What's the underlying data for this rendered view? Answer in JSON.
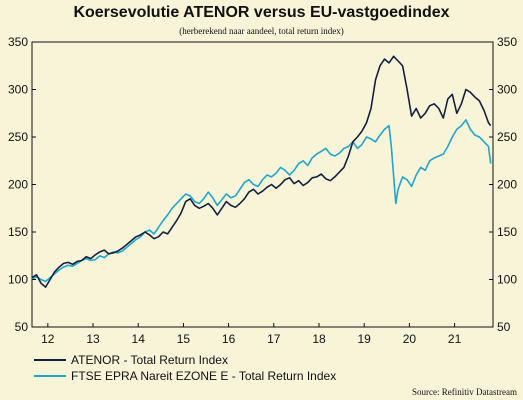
{
  "chart_data": {
    "type": "line",
    "title": "Koersevolutie ATENOR versus EU-vastgoedindex",
    "subtitle": "(herberekend naar aandeel, total return index)",
    "xlabel": "",
    "ylabel": "",
    "xlim": [
      2011.65,
      2021.85
    ],
    "ylim": [
      50,
      350
    ],
    "y_ticks": [
      50,
      100,
      150,
      200,
      250,
      300,
      350
    ],
    "x_ticks": [
      {
        "label": "12",
        "pos": 2012.0
      },
      {
        "label": "13",
        "pos": 2013.0
      },
      {
        "label": "14",
        "pos": 2014.0
      },
      {
        "label": "15",
        "pos": 2015.0
      },
      {
        "label": "16",
        "pos": 2016.0
      },
      {
        "label": "17",
        "pos": 2017.0
      },
      {
        "label": "18",
        "pos": 2018.0
      },
      {
        "label": "19",
        "pos": 2019.0
      },
      {
        "label": "20",
        "pos": 2020.0
      },
      {
        "label": "21",
        "pos": 2021.0
      }
    ],
    "grid": false,
    "legend_position": "bottom-left",
    "source": "Source: Refinitiv Datastream",
    "series": [
      {
        "name": "ATENOR - Total Return Index",
        "color": "#13213f",
        "x": [
          2011.65,
          2011.75,
          2011.85,
          2011.95,
          2012.05,
          2012.15,
          2012.25,
          2012.35,
          2012.45,
          2012.55,
          2012.65,
          2012.75,
          2012.85,
          2012.95,
          2013.05,
          2013.15,
          2013.25,
          2013.35,
          2013.45,
          2013.55,
          2013.65,
          2013.75,
          2013.85,
          2013.95,
          2014.05,
          2014.15,
          2014.25,
          2014.35,
          2014.45,
          2014.55,
          2014.65,
          2014.75,
          2014.85,
          2014.95,
          2015.05,
          2015.15,
          2015.25,
          2015.35,
          2015.45,
          2015.55,
          2015.65,
          2015.75,
          2015.85,
          2015.95,
          2016.05,
          2016.15,
          2016.25,
          2016.35,
          2016.45,
          2016.55,
          2016.65,
          2016.75,
          2016.85,
          2016.95,
          2017.05,
          2017.15,
          2017.25,
          2017.35,
          2017.45,
          2017.55,
          2017.65,
          2017.75,
          2017.85,
          2017.95,
          2018.05,
          2018.15,
          2018.25,
          2018.35,
          2018.45,
          2018.55,
          2018.65,
          2018.75,
          2018.85,
          2018.95,
          2019.05,
          2019.15,
          2019.25,
          2019.35,
          2019.45,
          2019.55,
          2019.65,
          2019.75,
          2019.85,
          2019.95,
          2020.05,
          2020.15,
          2020.25,
          2020.35,
          2020.45,
          2020.55,
          2020.65,
          2020.75,
          2020.85,
          2020.95,
          2021.05,
          2021.15,
          2021.25,
          2021.35,
          2021.45,
          2021.55,
          2021.65,
          2021.75,
          2021.8
        ],
        "y": [
          102,
          105,
          96,
          92,
          100,
          108,
          113,
          117,
          118,
          116,
          119,
          120,
          124,
          122,
          126,
          129,
          131,
          127,
          128,
          130,
          133,
          137,
          141,
          145,
          147,
          150,
          147,
          143,
          145,
          150,
          148,
          155,
          162,
          170,
          182,
          185,
          178,
          175,
          177,
          180,
          175,
          168,
          175,
          182,
          178,
          176,
          180,
          185,
          192,
          195,
          190,
          193,
          197,
          200,
          196,
          200,
          205,
          207,
          201,
          204,
          199,
          202,
          207,
          208,
          211,
          206,
          204,
          208,
          213,
          218,
          230,
          245,
          250,
          256,
          265,
          280,
          310,
          325,
          332,
          328,
          335,
          330,
          325,
          300,
          272,
          280,
          270,
          275,
          283,
          285,
          280,
          270,
          290,
          295,
          275,
          285,
          300,
          297,
          292,
          288,
          278,
          265,
          262
        ]
      },
      {
        "name": "FTSE EPRA Nareit EZONE E - Total Return Index",
        "color": "#1fa6cf",
        "x": [
          2011.65,
          2011.75,
          2011.85,
          2011.95,
          2012.05,
          2012.15,
          2012.25,
          2012.35,
          2012.45,
          2012.55,
          2012.65,
          2012.75,
          2012.85,
          2012.95,
          2013.05,
          2013.15,
          2013.25,
          2013.35,
          2013.45,
          2013.55,
          2013.65,
          2013.75,
          2013.85,
          2013.95,
          2014.05,
          2014.15,
          2014.25,
          2014.35,
          2014.45,
          2014.55,
          2014.65,
          2014.75,
          2014.85,
          2014.95,
          2015.05,
          2015.15,
          2015.25,
          2015.35,
          2015.45,
          2015.55,
          2015.65,
          2015.75,
          2015.85,
          2015.95,
          2016.05,
          2016.15,
          2016.25,
          2016.35,
          2016.45,
          2016.55,
          2016.65,
          2016.75,
          2016.85,
          2016.95,
          2017.05,
          2017.15,
          2017.25,
          2017.35,
          2017.45,
          2017.55,
          2017.65,
          2017.75,
          2017.85,
          2017.95,
          2018.05,
          2018.15,
          2018.25,
          2018.35,
          2018.45,
          2018.55,
          2018.65,
          2018.75,
          2018.85,
          2018.95,
          2019.05,
          2019.15,
          2019.25,
          2019.35,
          2019.45,
          2019.55,
          2019.6,
          2019.7,
          2019.75,
          2019.85,
          2019.95,
          2020.05,
          2020.15,
          2020.25,
          2020.35,
          2020.45,
          2020.55,
          2020.65,
          2020.75,
          2020.85,
          2020.95,
          2021.05,
          2021.15,
          2021.25,
          2021.35,
          2021.45,
          2021.55,
          2021.65,
          2021.75,
          2021.8
        ],
        "y": [
          100,
          103,
          100,
          98,
          102,
          106,
          110,
          113,
          115,
          114,
          117,
          120,
          122,
          120,
          121,
          125,
          123,
          127,
          129,
          128,
          130,
          134,
          138,
          142,
          145,
          150,
          152,
          148,
          155,
          162,
          168,
          175,
          180,
          185,
          190,
          188,
          182,
          180,
          185,
          192,
          186,
          178,
          184,
          190,
          186,
          188,
          195,
          202,
          205,
          200,
          198,
          205,
          210,
          208,
          212,
          218,
          215,
          210,
          215,
          222,
          225,
          220,
          228,
          232,
          235,
          238,
          232,
          230,
          233,
          238,
          240,
          245,
          238,
          242,
          250,
          248,
          245,
          252,
          258,
          262,
          240,
          180,
          195,
          208,
          205,
          198,
          210,
          218,
          215,
          225,
          228,
          230,
          232,
          240,
          250,
          258,
          262,
          268,
          258,
          252,
          250,
          245,
          240,
          222
        ]
      }
    ]
  }
}
